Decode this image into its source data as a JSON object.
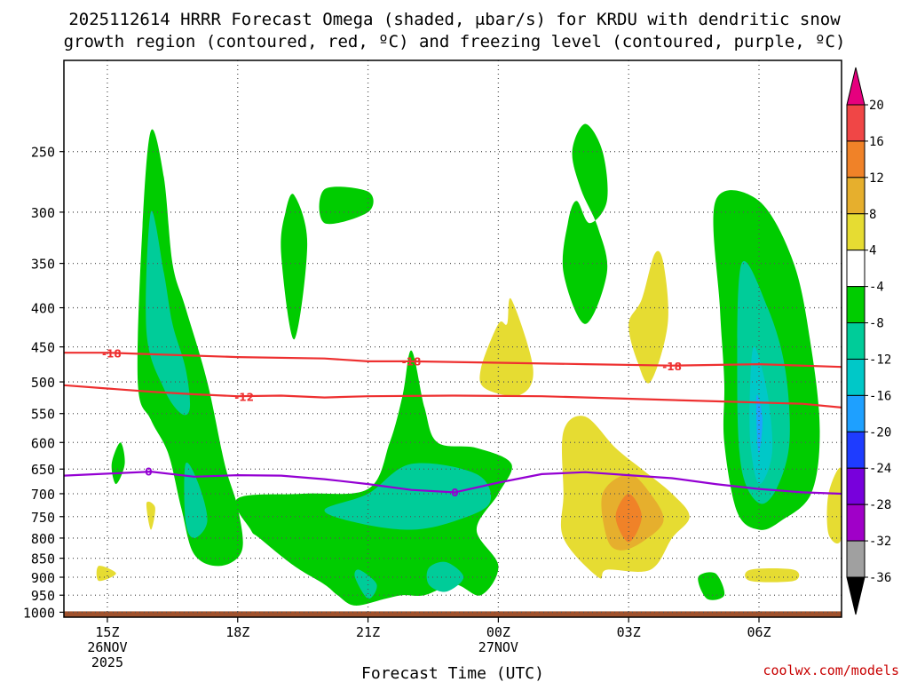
{
  "title_line1": "2025112614 HRRR Forecast Omega (shaded, μbar/s) for KRDU with dendritic snow",
  "title_line2": "growth region (contoured, red, ºC) and freezing level (contoured, purple, ºC)",
  "credit": "coolwx.com/models",
  "colors": {
    "ground": "#a0522d",
    "red_contour": "#ee3030",
    "purple_contour": "#9400d3",
    "green": "#00cc00",
    "teal": "#00cc99",
    "cyan": "#00c8c8",
    "blue_light": "#1ea0ff",
    "yellow": "#e6dc32",
    "gold": "#e6af2d",
    "orange": "#f08228"
  },
  "chart_data": {
    "type": "heatmap",
    "xlabel": "Forecast Time (UTC)",
    "x_ticks": [
      {
        "hour": 15,
        "line1": "15Z",
        "line2": "26NOV",
        "line3": "2025"
      },
      {
        "hour": 18,
        "line1": "18Z",
        "line2": "",
        "line3": ""
      },
      {
        "hour": 21,
        "line1": "21Z",
        "line2": "",
        "line3": ""
      },
      {
        "hour": 24,
        "line1": "00Z",
        "line2": "27NOV",
        "line3": ""
      },
      {
        "hour": 27,
        "line1": "03Z",
        "line2": "",
        "line3": ""
      },
      {
        "hour": 30,
        "line1": "06Z",
        "line2": "",
        "line3": ""
      }
    ],
    "xlim": [
      14,
      31.9
    ],
    "y_ticks": [
      250,
      300,
      350,
      400,
      450,
      500,
      550,
      600,
      650,
      700,
      750,
      800,
      850,
      900,
      950,
      1000
    ],
    "ylim_hpa": [
      190,
      1015
    ],
    "y_scale": "log",
    "grid": "dotted",
    "colorbar": {
      "unit": "μbar/s",
      "labels": [
        "20",
        "16",
        "12",
        "8",
        "4",
        "-4",
        "-8",
        "-12",
        "-16",
        "-20",
        "-24",
        "-28",
        "-32",
        "-36"
      ],
      "bins": [
        {
          "color": "#e6007e"
        },
        {
          "color": "#f04646"
        },
        {
          "color": "#f08228"
        },
        {
          "color": "#e6af2d"
        },
        {
          "color": "#e6dc32"
        },
        {
          "color": "#ffffff"
        },
        {
          "color": "#00cc00"
        },
        {
          "color": "#00cc99"
        },
        {
          "color": "#00c8c8"
        },
        {
          "color": "#1ea0ff"
        },
        {
          "color": "#1e3cff"
        },
        {
          "color": "#7800dc"
        },
        {
          "color": "#a000c8"
        },
        {
          "color": "#a0a0a0"
        },
        {
          "color": "#000000"
        }
      ]
    },
    "contours": [
      {
        "name": "-18",
        "color": "#ee3030",
        "label": "-18",
        "label_at": [
          [
            15.1,
            459
          ],
          [
            22.0,
            470
          ],
          [
            28.0,
            477
          ]
        ],
        "points": [
          [
            14,
            458
          ],
          [
            15,
            458
          ],
          [
            16,
            460
          ],
          [
            18,
            464
          ],
          [
            20,
            466
          ],
          [
            21,
            470
          ],
          [
            22,
            470
          ],
          [
            24,
            472
          ],
          [
            26,
            474
          ],
          [
            28,
            476
          ],
          [
            30,
            474
          ],
          [
            31.9,
            478
          ]
        ]
      },
      {
        "name": "-12",
        "color": "#ee3030",
        "label": "-12",
        "label_at": [
          [
            18.15,
            523
          ]
        ],
        "points": [
          [
            14,
            505
          ],
          [
            15,
            510
          ],
          [
            16,
            515
          ],
          [
            17,
            519
          ],
          [
            18,
            522
          ],
          [
            19,
            521
          ],
          [
            20,
            524
          ],
          [
            21,
            522
          ],
          [
            23,
            521
          ],
          [
            25,
            522
          ],
          [
            27,
            526
          ],
          [
            29,
            530
          ],
          [
            31,
            534
          ],
          [
            31.9,
            540
          ]
        ]
      },
      {
        "name": "0",
        "color": "#9400d3",
        "label": "0",
        "label_at": [
          [
            15.95,
            655
          ],
          [
            23.0,
            697
          ]
        ],
        "points": [
          [
            14,
            663
          ],
          [
            15,
            659
          ],
          [
            16,
            655
          ],
          [
            17,
            665
          ],
          [
            18,
            662
          ],
          [
            19,
            663
          ],
          [
            20,
            670
          ],
          [
            21,
            680
          ],
          [
            22,
            692
          ],
          [
            23,
            697
          ],
          [
            24,
            677
          ],
          [
            25,
            660
          ],
          [
            26,
            656
          ],
          [
            27,
            662
          ],
          [
            28,
            668
          ],
          [
            29,
            680
          ],
          [
            30,
            690
          ],
          [
            31,
            697
          ],
          [
            31.9,
            700
          ]
        ]
      }
    ],
    "shaded_regions": [
      {
        "color": "#00cc00",
        "pts": [
          [
            15.7,
            500
          ],
          [
            15.8,
            320
          ],
          [
            16.0,
            235
          ],
          [
            16.3,
            270
          ],
          [
            16.5,
            350
          ],
          [
            16.8,
            400
          ],
          [
            17.3,
            500
          ],
          [
            17.7,
            640
          ],
          [
            18.0,
            730
          ],
          [
            18.1,
            830
          ],
          [
            17.6,
            870
          ],
          [
            17.0,
            840
          ],
          [
            16.7,
            730
          ],
          [
            16.4,
            620
          ],
          [
            16.0,
            560
          ]
        ]
      },
      {
        "color": "#00cc99",
        "pts": [
          [
            15.9,
            430
          ],
          [
            16.0,
            300
          ],
          [
            16.3,
            360
          ],
          [
            16.5,
            420
          ],
          [
            16.8,
            480
          ],
          [
            16.9,
            540
          ],
          [
            16.7,
            550
          ],
          [
            16.3,
            510
          ]
        ]
      },
      {
        "color": "#00cc99",
        "pts": [
          [
            16.8,
            640
          ],
          [
            17.1,
            680
          ],
          [
            17.3,
            760
          ],
          [
            17.0,
            800
          ],
          [
            16.8,
            760
          ]
        ]
      },
      {
        "color": "#00cc00",
        "pts": [
          [
            18.0,
            710
          ],
          [
            19.5,
            700
          ],
          [
            21.0,
            690
          ],
          [
            21.5,
            600
          ],
          [
            21.8,
            520
          ],
          [
            22.0,
            455
          ],
          [
            22.3,
            540
          ],
          [
            22.6,
            600
          ],
          [
            23.5,
            610
          ],
          [
            24.3,
            640
          ],
          [
            24.0,
            700
          ],
          [
            23.5,
            780
          ],
          [
            24.0,
            870
          ],
          [
            23.6,
            950
          ],
          [
            23.0,
            920
          ],
          [
            22.3,
            950
          ],
          [
            21.8,
            950
          ],
          [
            21.4,
            960
          ],
          [
            20.7,
            980
          ],
          [
            20.3,
            950
          ],
          [
            20.0,
            920
          ],
          [
            19.3,
            870
          ],
          [
            18.5,
            800
          ],
          [
            18.3,
            780
          ]
        ]
      },
      {
        "color": "#00cc99",
        "pts": [
          [
            20.0,
            735
          ],
          [
            21.0,
            700
          ],
          [
            22.0,
            640
          ],
          [
            23.5,
            660
          ],
          [
            23.8,
            720
          ],
          [
            23.0,
            760
          ],
          [
            22.0,
            780
          ],
          [
            20.8,
            765
          ]
        ]
      },
      {
        "color": "#00cc99",
        "pts": [
          [
            20.7,
            900
          ],
          [
            20.8,
            880
          ],
          [
            21.2,
            920
          ],
          [
            21.0,
            960
          ]
        ]
      },
      {
        "color": "#00cc99",
        "pts": [
          [
            22.4,
            875
          ],
          [
            22.8,
            860
          ],
          [
            23.2,
            900
          ],
          [
            22.8,
            940
          ],
          [
            22.4,
            920
          ]
        ]
      },
      {
        "color": "#00cc00",
        "pts": [
          [
            19.1,
            300
          ],
          [
            19.3,
            285
          ],
          [
            19.6,
            330
          ],
          [
            19.3,
            440
          ],
          [
            19.0,
            340
          ]
        ]
      },
      {
        "color": "#00cc00",
        "pts": [
          [
            20.0,
            280
          ],
          [
            21.0,
            282
          ],
          [
            21.0,
            300
          ],
          [
            20.0,
            310
          ]
        ]
      },
      {
        "color": "#00cc00",
        "pts": [
          [
            25.6,
            310
          ],
          [
            25.8,
            290
          ],
          [
            26.1,
            310
          ],
          [
            26.5,
            290
          ],
          [
            26.4,
            250
          ],
          [
            26.0,
            230
          ],
          [
            25.7,
            250
          ],
          [
            25.9,
            280
          ],
          [
            26.3,
            315
          ],
          [
            26.5,
            360
          ],
          [
            26.0,
            420
          ],
          [
            25.5,
            360
          ]
        ]
      },
      {
        "color": "#00cc00",
        "pts": [
          [
            29.0,
            290
          ],
          [
            30.0,
            290
          ],
          [
            30.8,
            350
          ],
          [
            31.2,
            450
          ],
          [
            31.4,
            580
          ],
          [
            31.2,
            700
          ],
          [
            30.5,
            760
          ],
          [
            30.0,
            780
          ],
          [
            29.5,
            740
          ],
          [
            29.2,
            600
          ],
          [
            29.2,
            500
          ],
          [
            29.1,
            400
          ]
        ]
      },
      {
        "color": "#00cc99",
        "pts": [
          [
            29.6,
            350
          ],
          [
            30.2,
            400
          ],
          [
            30.6,
            480
          ],
          [
            30.7,
            600
          ],
          [
            30.4,
            690
          ],
          [
            30.0,
            720
          ],
          [
            29.6,
            650
          ],
          [
            29.5,
            500
          ]
        ]
      },
      {
        "color": "#00c8c8",
        "pts": [
          [
            29.9,
            450
          ],
          [
            30.2,
            520
          ],
          [
            30.3,
            620
          ],
          [
            30.0,
            680
          ],
          [
            29.8,
            600
          ],
          [
            29.8,
            500
          ]
        ]
      },
      {
        "color": "#1ea0ff",
        "pts": [
          [
            29.95,
            520
          ],
          [
            30.08,
            560
          ],
          [
            30.0,
            620
          ],
          [
            29.95,
            580
          ]
        ]
      },
      {
        "color": "#e6dc32",
        "pts": [
          [
            23.6,
            480
          ],
          [
            24.0,
            420
          ],
          [
            24.2,
            420
          ],
          [
            24.3,
            390
          ],
          [
            24.8,
            480
          ],
          [
            24.5,
            520
          ],
          [
            23.7,
            510
          ]
        ]
      },
      {
        "color": "#e6dc32",
        "pts": [
          [
            25.5,
            580
          ],
          [
            26.0,
            555
          ],
          [
            26.7,
            610
          ],
          [
            27.3,
            650
          ],
          [
            28.0,
            700
          ],
          [
            28.4,
            750
          ],
          [
            28.0,
            800
          ],
          [
            27.5,
            880
          ],
          [
            26.5,
            880
          ],
          [
            26.3,
            900
          ],
          [
            25.5,
            800
          ],
          [
            25.5,
            700
          ]
        ]
      },
      {
        "color": "#e6af2d",
        "pts": [
          [
            26.4,
            700
          ],
          [
            27.0,
            660
          ],
          [
            27.5,
            700
          ],
          [
            27.8,
            760
          ],
          [
            27.3,
            810
          ],
          [
            26.8,
            830
          ],
          [
            26.5,
            800
          ]
        ]
      },
      {
        "color": "#f08228",
        "pts": [
          [
            26.7,
            750
          ],
          [
            27.0,
            700
          ],
          [
            27.3,
            750
          ],
          [
            27.0,
            810
          ]
        ]
      },
      {
        "color": "#e6dc32",
        "pts": [
          [
            27.0,
            420
          ],
          [
            27.3,
            390
          ],
          [
            27.6,
            340
          ],
          [
            27.8,
            350
          ],
          [
            27.9,
            420
          ],
          [
            27.5,
            500
          ],
          [
            27.2,
            470
          ]
        ]
      },
      {
        "color": "#00cc00",
        "pts": [
          [
            15.3,
            600
          ],
          [
            15.4,
            640
          ],
          [
            15.2,
            680
          ],
          [
            15.1,
            640
          ]
        ]
      },
      {
        "color": "#e6dc32",
        "pts": [
          [
            15.9,
            720
          ],
          [
            16.1,
            730
          ],
          [
            16.0,
            780
          ]
        ]
      },
      {
        "color": "#e6dc32",
        "pts": [
          [
            14.8,
            870
          ],
          [
            15.2,
            890
          ],
          [
            14.8,
            910
          ]
        ]
      },
      {
        "color": "#00cc00",
        "pts": [
          [
            28.6,
            900
          ],
          [
            29.0,
            890
          ],
          [
            29.2,
            950
          ],
          [
            28.8,
            960
          ]
        ]
      },
      {
        "color": "#e6dc32",
        "pts": [
          [
            29.8,
            880
          ],
          [
            30.8,
            880
          ],
          [
            30.8,
            910
          ],
          [
            29.8,
            910
          ]
        ]
      },
      {
        "color": "#e6dc32",
        "pts": [
          [
            31.6,
            700
          ],
          [
            31.9,
            650
          ],
          [
            31.9,
            800
          ],
          [
            31.6,
            790
          ]
        ]
      }
    ]
  }
}
